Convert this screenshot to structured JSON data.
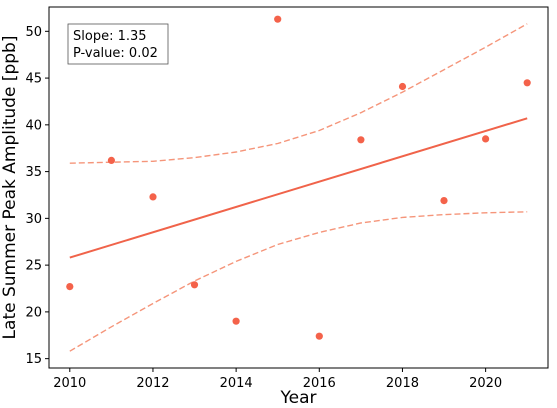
{
  "chart_data": {
    "type": "scatter",
    "xlabel": "Year",
    "ylabel": "Late Summer Peak Amplitude [ppb]",
    "xlim": [
      2009.5,
      2021.5
    ],
    "ylim": [
      14.0,
      52.6
    ],
    "x_ticks": [
      2010,
      2012,
      2014,
      2016,
      2018,
      2020
    ],
    "y_ticks": [
      15,
      20,
      25,
      30,
      35,
      40,
      45,
      50
    ],
    "grid": false,
    "colors": {
      "points": "#f4624a",
      "fit": "#f0634a",
      "ci": "#f5957a"
    },
    "series": [
      {
        "type": "scatter",
        "x": [
          2010,
          2011,
          2012,
          2013,
          2014,
          2015,
          2016,
          2017,
          2018,
          2019,
          2020,
          2021
        ],
        "y": [
          22.7,
          36.2,
          32.3,
          22.9,
          19.0,
          51.3,
          17.4,
          38.4,
          44.1,
          31.9,
          38.5,
          44.5
        ]
      }
    ],
    "fit_line": {
      "x": [
        2010,
        2021
      ],
      "y": [
        25.8,
        40.7
      ]
    },
    "ci_upper": {
      "x": [
        2010,
        2011,
        2012,
        2013,
        2014,
        2015,
        2016,
        2017,
        2018,
        2019,
        2020,
        2021
      ],
      "y": [
        35.9,
        36.0,
        36.1,
        36.5,
        37.1,
        38.0,
        39.4,
        41.3,
        43.5,
        45.9,
        48.3,
        50.8
      ]
    },
    "ci_lower": {
      "x": [
        2010,
        2011,
        2012,
        2013,
        2014,
        2015,
        2016,
        2017,
        2018,
        2019,
        2020,
        2021
      ],
      "y": [
        15.8,
        18.4,
        20.9,
        23.3,
        25.4,
        27.2,
        28.5,
        29.5,
        30.1,
        30.4,
        30.6,
        30.7
      ]
    },
    "annotation": {
      "lines": [
        "Slope: 1.35",
        "P-value: 0.02"
      ],
      "placement": "top-left"
    }
  }
}
